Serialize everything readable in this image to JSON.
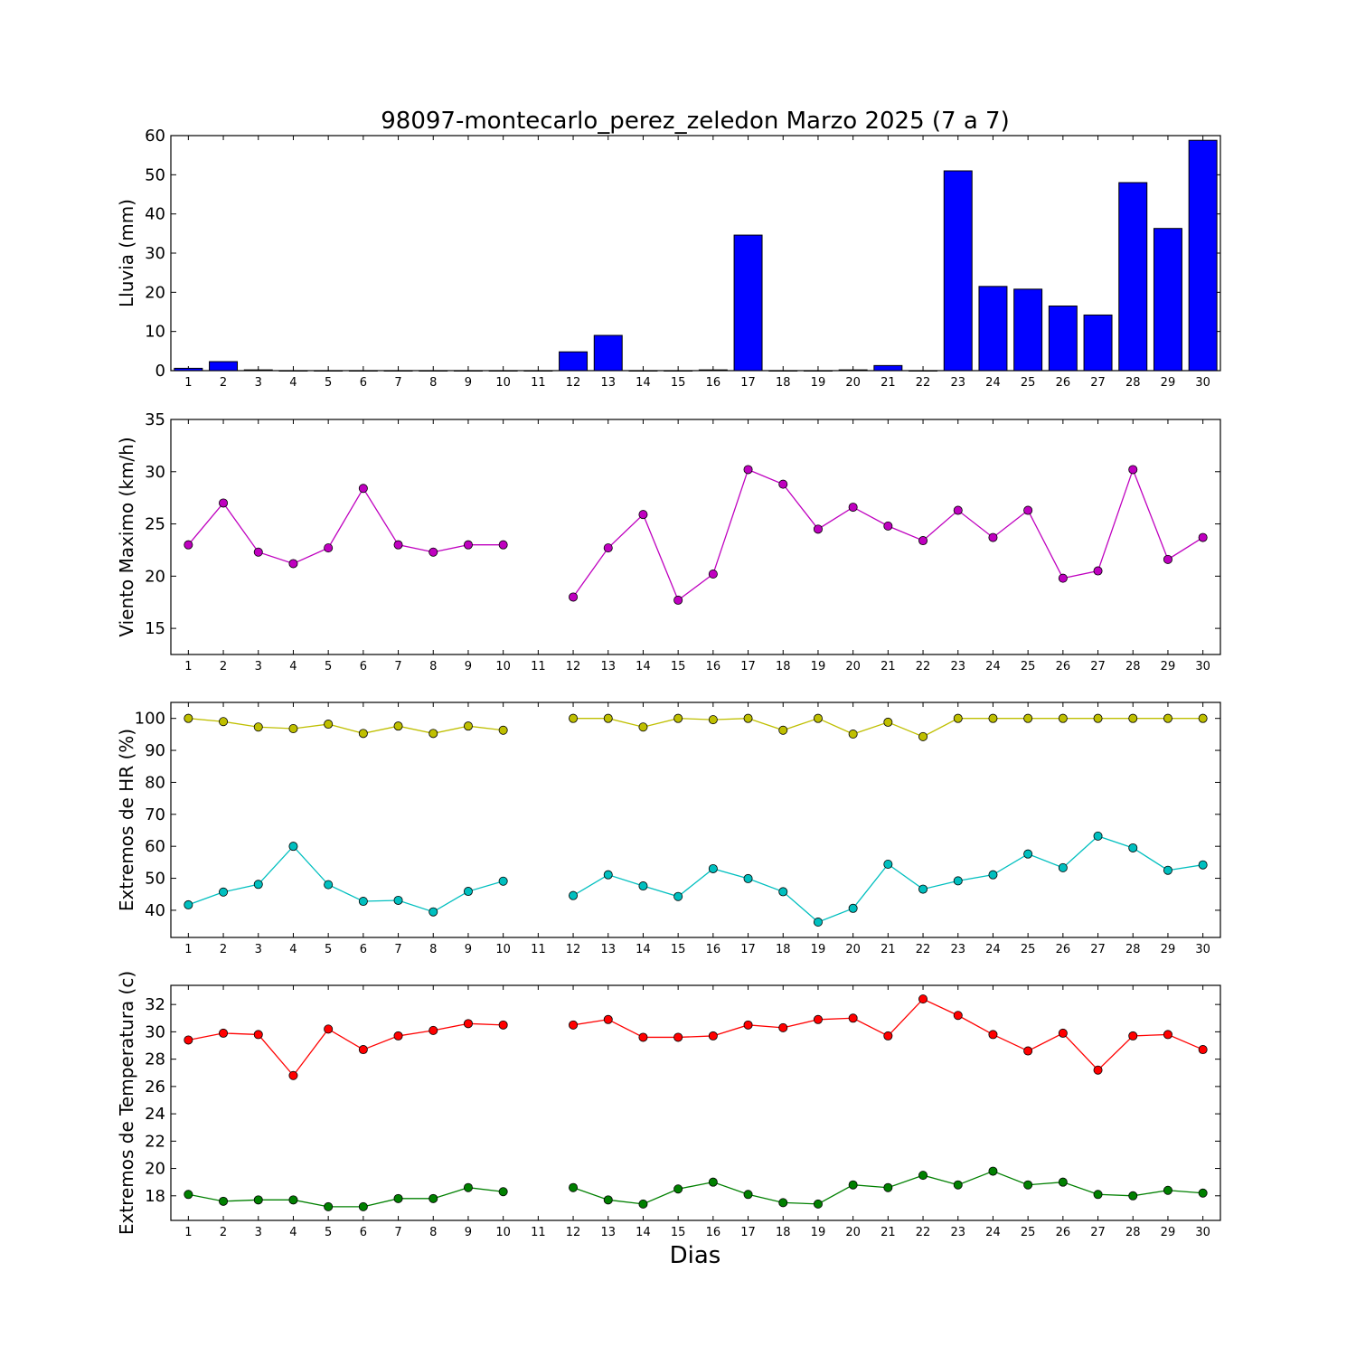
{
  "chart_data": [
    {
      "type": "bar",
      "title": "98097-montecarlo_perez_zeledon Marzo 2025  (7 a 7)",
      "ylabel": "Lluvia (mm)",
      "ylim": [
        0,
        60
      ],
      "yticks": [
        0,
        10,
        20,
        30,
        40,
        50,
        60
      ],
      "categories": [
        1,
        2,
        3,
        4,
        5,
        6,
        7,
        8,
        9,
        10,
        11,
        12,
        13,
        14,
        15,
        16,
        17,
        18,
        19,
        20,
        21,
        22,
        23,
        24,
        25,
        26,
        27,
        28,
        29,
        30
      ],
      "values": [
        0.6,
        2.3,
        0.2,
        0,
        0,
        0,
        0,
        0,
        0,
        0,
        0,
        4.8,
        9.0,
        0,
        0,
        0.2,
        34.6,
        0,
        0,
        0.2,
        1.3,
        0,
        51.0,
        21.5,
        20.8,
        16.5,
        14.2,
        48.0,
        36.3,
        58.8
      ],
      "color": "#0000ff"
    },
    {
      "type": "line",
      "ylabel": "Viento Maximo (km/h)",
      "ylim": [
        12.5,
        35
      ],
      "yticks": [
        15,
        20,
        25,
        30,
        35
      ],
      "x": [
        1,
        2,
        3,
        4,
        5,
        6,
        7,
        8,
        9,
        10,
        11,
        12,
        13,
        14,
        15,
        16,
        17,
        18,
        19,
        20,
        21,
        22,
        23,
        24,
        25,
        26,
        27,
        28,
        29,
        30
      ],
      "series": [
        {
          "color": "#bf00bf",
          "values": [
            23.0,
            27.0,
            22.3,
            21.2,
            22.7,
            28.4,
            23.0,
            22.3,
            23.0,
            23.0,
            null,
            18.0,
            22.7,
            25.9,
            17.7,
            20.2,
            30.2,
            28.8,
            24.5,
            26.6,
            24.8,
            23.4,
            26.3,
            23.7,
            26.3,
            19.8,
            20.5,
            30.2,
            21.6,
            23.7
          ]
        }
      ]
    },
    {
      "type": "line",
      "ylabel": "Extremos de HR (%)",
      "ylim": [
        31.5,
        105
      ],
      "yticks": [
        40,
        50,
        60,
        70,
        80,
        90,
        100
      ],
      "x": [
        1,
        2,
        3,
        4,
        5,
        6,
        7,
        8,
        9,
        10,
        11,
        12,
        13,
        14,
        15,
        16,
        17,
        18,
        19,
        20,
        21,
        22,
        23,
        24,
        25,
        26,
        27,
        28,
        29,
        30
      ],
      "series": [
        {
          "color": "#bfbf00",
          "values": [
            100,
            99,
            97.3,
            96.8,
            98.2,
            95.3,
            97.6,
            95.3,
            97.6,
            96.3,
            null,
            100,
            100,
            97.3,
            100,
            99.6,
            100,
            96.3,
            100,
            95.1,
            98.8,
            94.3,
            100,
            100,
            100,
            100,
            100,
            100,
            100,
            100
          ]
        },
        {
          "color": "#00bfbf",
          "values": [
            41.7,
            45.7,
            48.1,
            60.0,
            48.0,
            42.8,
            43.1,
            39.5,
            45.9,
            49.1,
            null,
            44.6,
            51.1,
            47.6,
            44.3,
            53.0,
            49.9,
            45.8,
            36.3,
            40.6,
            54.4,
            46.6,
            49.2,
            51.1,
            57.6,
            53.3,
            63.2,
            59.5,
            52.5,
            54.2
          ]
        }
      ]
    },
    {
      "type": "line",
      "ylabel": "Extremos de Temperatura (c)",
      "xlabel": "Dias",
      "ylim": [
        16.2,
        33.4
      ],
      "yticks": [
        18,
        20,
        22,
        24,
        26,
        28,
        30,
        32
      ],
      "x": [
        1,
        2,
        3,
        4,
        5,
        6,
        7,
        8,
        9,
        10,
        11,
        12,
        13,
        14,
        15,
        16,
        17,
        18,
        19,
        20,
        21,
        22,
        23,
        24,
        25,
        26,
        27,
        28,
        29,
        30
      ],
      "series": [
        {
          "color": "#ff0000",
          "values": [
            29.4,
            29.9,
            29.8,
            26.8,
            30.2,
            28.7,
            29.7,
            30.1,
            30.6,
            30.5,
            null,
            30.5,
            30.9,
            29.6,
            29.6,
            29.7,
            30.5,
            30.3,
            30.9,
            31.0,
            29.7,
            32.4,
            31.2,
            29.8,
            28.6,
            29.9,
            27.2,
            29.7,
            29.8,
            28.7
          ]
        },
        {
          "color": "#008000",
          "values": [
            18.1,
            17.6,
            17.7,
            17.7,
            17.2,
            17.2,
            17.8,
            17.8,
            18.6,
            18.3,
            null,
            18.6,
            17.7,
            17.4,
            18.5,
            19.0,
            18.1,
            17.5,
            17.4,
            18.8,
            18.6,
            19.5,
            18.8,
            19.8,
            18.8,
            19.0,
            18.1,
            18.0,
            18.4,
            18.2
          ]
        }
      ]
    }
  ]
}
